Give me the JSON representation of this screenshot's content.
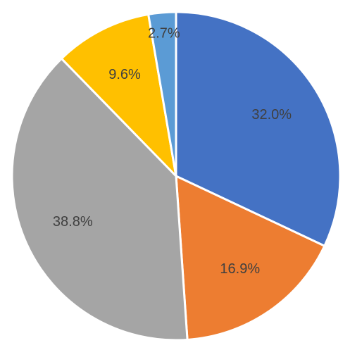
{
  "chart_data": {
    "type": "pie",
    "values": [
      32.0,
      16.9,
      38.8,
      9.6,
      2.7
    ],
    "value_labels": [
      "32.0%",
      "16.9%",
      "38.8%",
      "9.6%",
      "2.7%"
    ],
    "colors": [
      "#4472c4",
      "#ed7d31",
      "#a5a5a5",
      "#ffc000",
      "#5b9bd5"
    ]
  }
}
